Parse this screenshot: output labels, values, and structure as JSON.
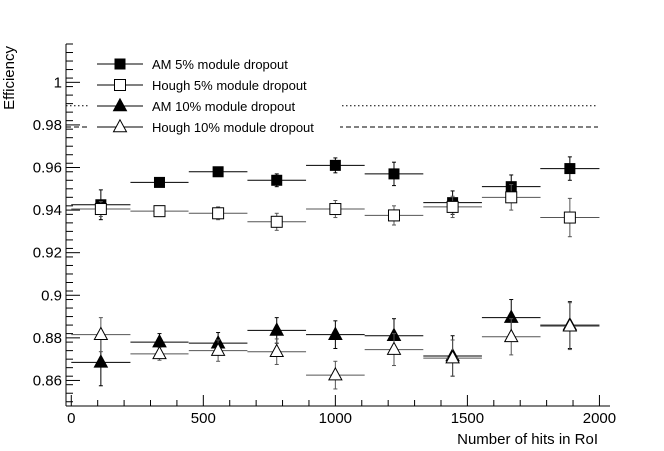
{
  "chart_data": {
    "type": "scatter",
    "xlabel": "Number of hits in RoI",
    "ylabel": "Efficiency",
    "xlim": [
      -20,
      2040
    ],
    "ylim": [
      0.848,
      1.018
    ],
    "x_ticks": [
      0,
      500,
      1000,
      1500,
      2000
    ],
    "x_tick_labels": [
      "0",
      "500",
      "1000",
      "1500",
      "2000"
    ],
    "y_ticks": [
      0.86,
      0.88,
      0.9,
      0.92,
      0.94,
      0.96,
      0.98,
      1
    ],
    "y_tick_labels": [
      "0.86",
      "0.88",
      "0.9",
      "0.92",
      "0.94",
      "0.96",
      "0.98",
      "1"
    ],
    "reference_lines": [
      {
        "y": 0.989,
        "style": "dotted"
      },
      {
        "y": 0.979,
        "style": "dashed"
      }
    ],
    "legend_position": "top-left",
    "series": [
      {
        "name": "AM 5% module dropout",
        "marker": "filled-square",
        "points": [
          {
            "x": 112,
            "xerr": 112,
            "y": 0.9425,
            "yerr": 0.007
          },
          {
            "x": 334,
            "xerr": 110,
            "y": 0.953,
            "yerr": 0.0012
          },
          {
            "x": 556,
            "xerr": 111,
            "y": 0.958,
            "yerr": 0.002
          },
          {
            "x": 778,
            "xerr": 111,
            "y": 0.954,
            "yerr": 0.003
          },
          {
            "x": 1000,
            "xerr": 111,
            "y": 0.961,
            "yerr": 0.0035
          },
          {
            "x": 1222,
            "xerr": 111,
            "y": 0.957,
            "yerr": 0.0055
          },
          {
            "x": 1444,
            "xerr": 111,
            "y": 0.9435,
            "yerr": 0.0055
          },
          {
            "x": 1666,
            "xerr": 111,
            "y": 0.951,
            "yerr": 0.0055
          },
          {
            "x": 1888,
            "xerr": 112,
            "y": 0.9595,
            "yerr": 0.0055
          }
        ]
      },
      {
        "name": "Hough 5% module dropout",
        "marker": "open-square",
        "points": [
          {
            "x": 112,
            "xerr": 112,
            "y": 0.9405,
            "yerr": 0.0035
          },
          {
            "x": 334,
            "xerr": 110,
            "y": 0.9395,
            "yerr": 0.0015
          },
          {
            "x": 556,
            "xerr": 111,
            "y": 0.9385,
            "yerr": 0.003
          },
          {
            "x": 778,
            "xerr": 111,
            "y": 0.9345,
            "yerr": 0.004
          },
          {
            "x": 1000,
            "xerr": 111,
            "y": 0.9405,
            "yerr": 0.004
          },
          {
            "x": 1222,
            "xerr": 111,
            "y": 0.9375,
            "yerr": 0.0045
          },
          {
            "x": 1444,
            "xerr": 111,
            "y": 0.9415,
            "yerr": 0.005
          },
          {
            "x": 1666,
            "xerr": 111,
            "y": 0.946,
            "yerr": 0.006
          },
          {
            "x": 1888,
            "xerr": 112,
            "y": 0.9365,
            "yerr": 0.009
          }
        ]
      },
      {
        "name": "AM 10% module dropout",
        "marker": "filled-triangle",
        "points": [
          {
            "x": 112,
            "xerr": 112,
            "y": 0.8685,
            "yerr": 0.011
          },
          {
            "x": 334,
            "xerr": 110,
            "y": 0.878,
            "yerr": 0.004
          },
          {
            "x": 556,
            "xerr": 111,
            "y": 0.8775,
            "yerr": 0.005
          },
          {
            "x": 778,
            "xerr": 111,
            "y": 0.8835,
            "yerr": 0.006
          },
          {
            "x": 1000,
            "xerr": 111,
            "y": 0.8815,
            "yerr": 0.0065
          },
          {
            "x": 1222,
            "xerr": 111,
            "y": 0.881,
            "yerr": 0.008
          },
          {
            "x": 1444,
            "xerr": 111,
            "y": 0.8715,
            "yerr": 0.0095
          },
          {
            "x": 1666,
            "xerr": 111,
            "y": 0.8895,
            "yerr": 0.0085
          },
          {
            "x": 1888,
            "xerr": 112,
            "y": 0.886,
            "yerr": 0.011
          }
        ]
      },
      {
        "name": "Hough 10% module dropout",
        "marker": "open-triangle",
        "points": [
          {
            "x": 112,
            "xerr": 112,
            "y": 0.8815,
            "yerr": 0.008
          },
          {
            "x": 334,
            "xerr": 110,
            "y": 0.8725,
            "yerr": 0.003
          },
          {
            "x": 556,
            "xerr": 111,
            "y": 0.874,
            "yerr": 0.005
          },
          {
            "x": 778,
            "xerr": 111,
            "y": 0.8735,
            "yerr": 0.006
          },
          {
            "x": 1000,
            "xerr": 111,
            "y": 0.8625,
            "yerr": 0.0065
          },
          {
            "x": 1222,
            "xerr": 111,
            "y": 0.8745,
            "yerr": 0.0075
          },
          {
            "x": 1444,
            "xerr": 111,
            "y": 0.8705,
            "yerr": 0.0085
          },
          {
            "x": 1666,
            "xerr": 111,
            "y": 0.8805,
            "yerr": 0.0085
          },
          {
            "x": 1888,
            "xerr": 112,
            "y": 0.8855,
            "yerr": 0.011
          }
        ]
      }
    ]
  }
}
